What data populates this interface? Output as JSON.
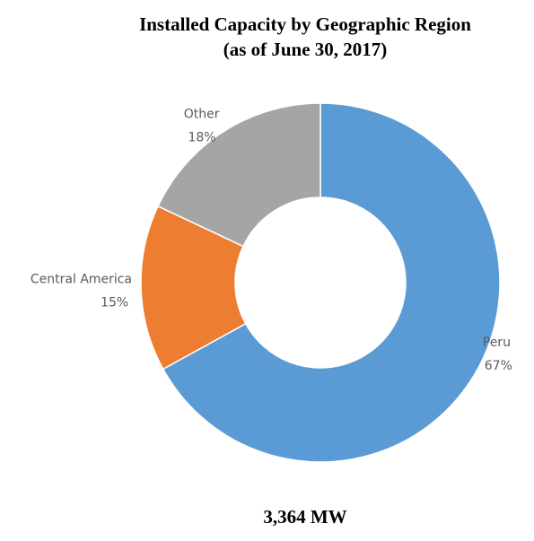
{
  "chart_data": {
    "type": "donut",
    "title": [
      "Installed Capacity by Geographic Region",
      "(as of June 30, 2017)"
    ],
    "categories": [
      "Peru",
      "Central America",
      "Other"
    ],
    "values": [
      67,
      15,
      18
    ],
    "value_labels": [
      "67%",
      "15%",
      "18%"
    ],
    "colors": [
      "#5b9bd5",
      "#ed7d31",
      "#a5a5a5"
    ],
    "total": "3,364 MW"
  }
}
